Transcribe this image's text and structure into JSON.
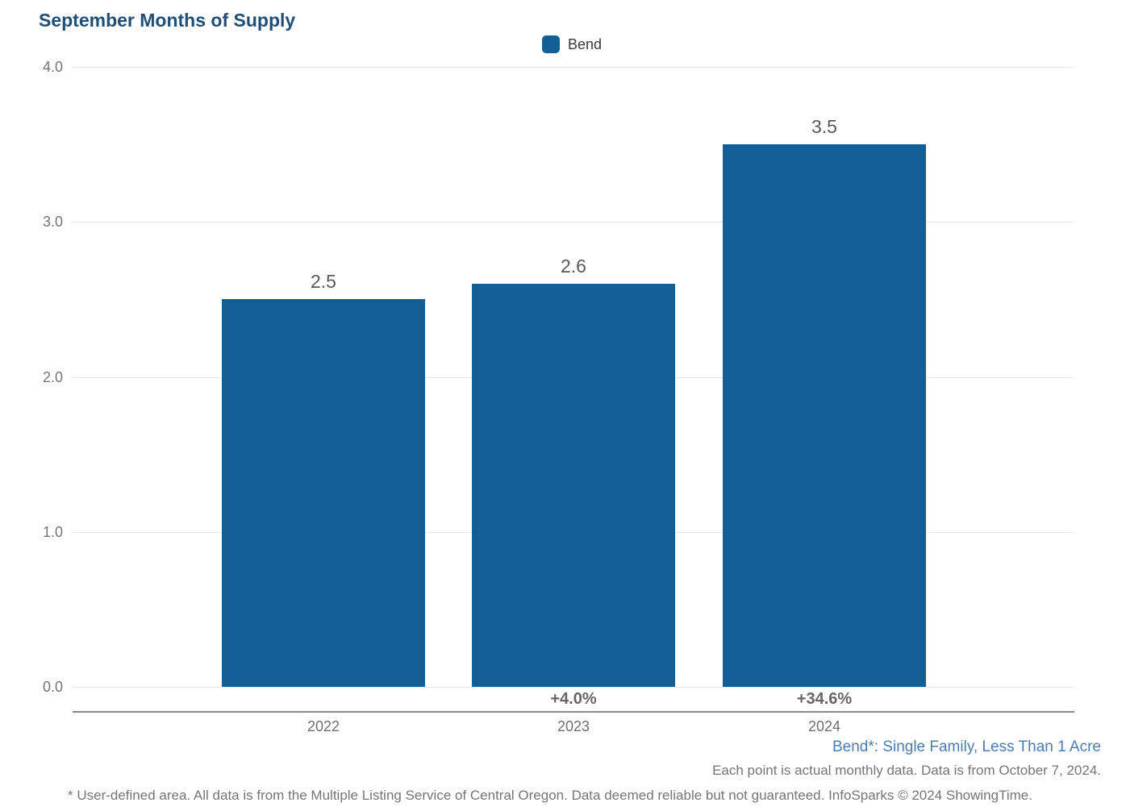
{
  "title": "September Months of Supply",
  "legend": {
    "label": "Bend",
    "color": "#115F94"
  },
  "chart_data": {
    "type": "bar",
    "title": "September Months of Supply",
    "categories": [
      "2022",
      "2023",
      "2024"
    ],
    "series": [
      {
        "name": "Bend",
        "values": [
          2.5,
          2.6,
          3.5
        ]
      }
    ],
    "value_labels": [
      "2.5",
      "2.6",
      "3.5"
    ],
    "pct_change_labels": [
      "",
      "+4.0%",
      "+34.6%"
    ],
    "xlabel": "",
    "ylabel": "",
    "ylim": [
      0,
      4
    ],
    "yticks": [
      "4.0",
      "3.0",
      "2.0",
      "1.0",
      "0.0"
    ],
    "grid": true,
    "legend_position": "top-center",
    "bar_color": "#115F94"
  },
  "footnotes": {
    "segment": "Bend*: Single Family, Less Than 1 Acre",
    "data_note": "Each point is actual monthly data. Data is from October 7, 2024.",
    "disclaimer": "* User-defined area. All data is from the Multiple Listing Service of Central Oregon. Data deemed reliable but not guaranteed. InfoSparks © 2024 ShowingTime."
  }
}
